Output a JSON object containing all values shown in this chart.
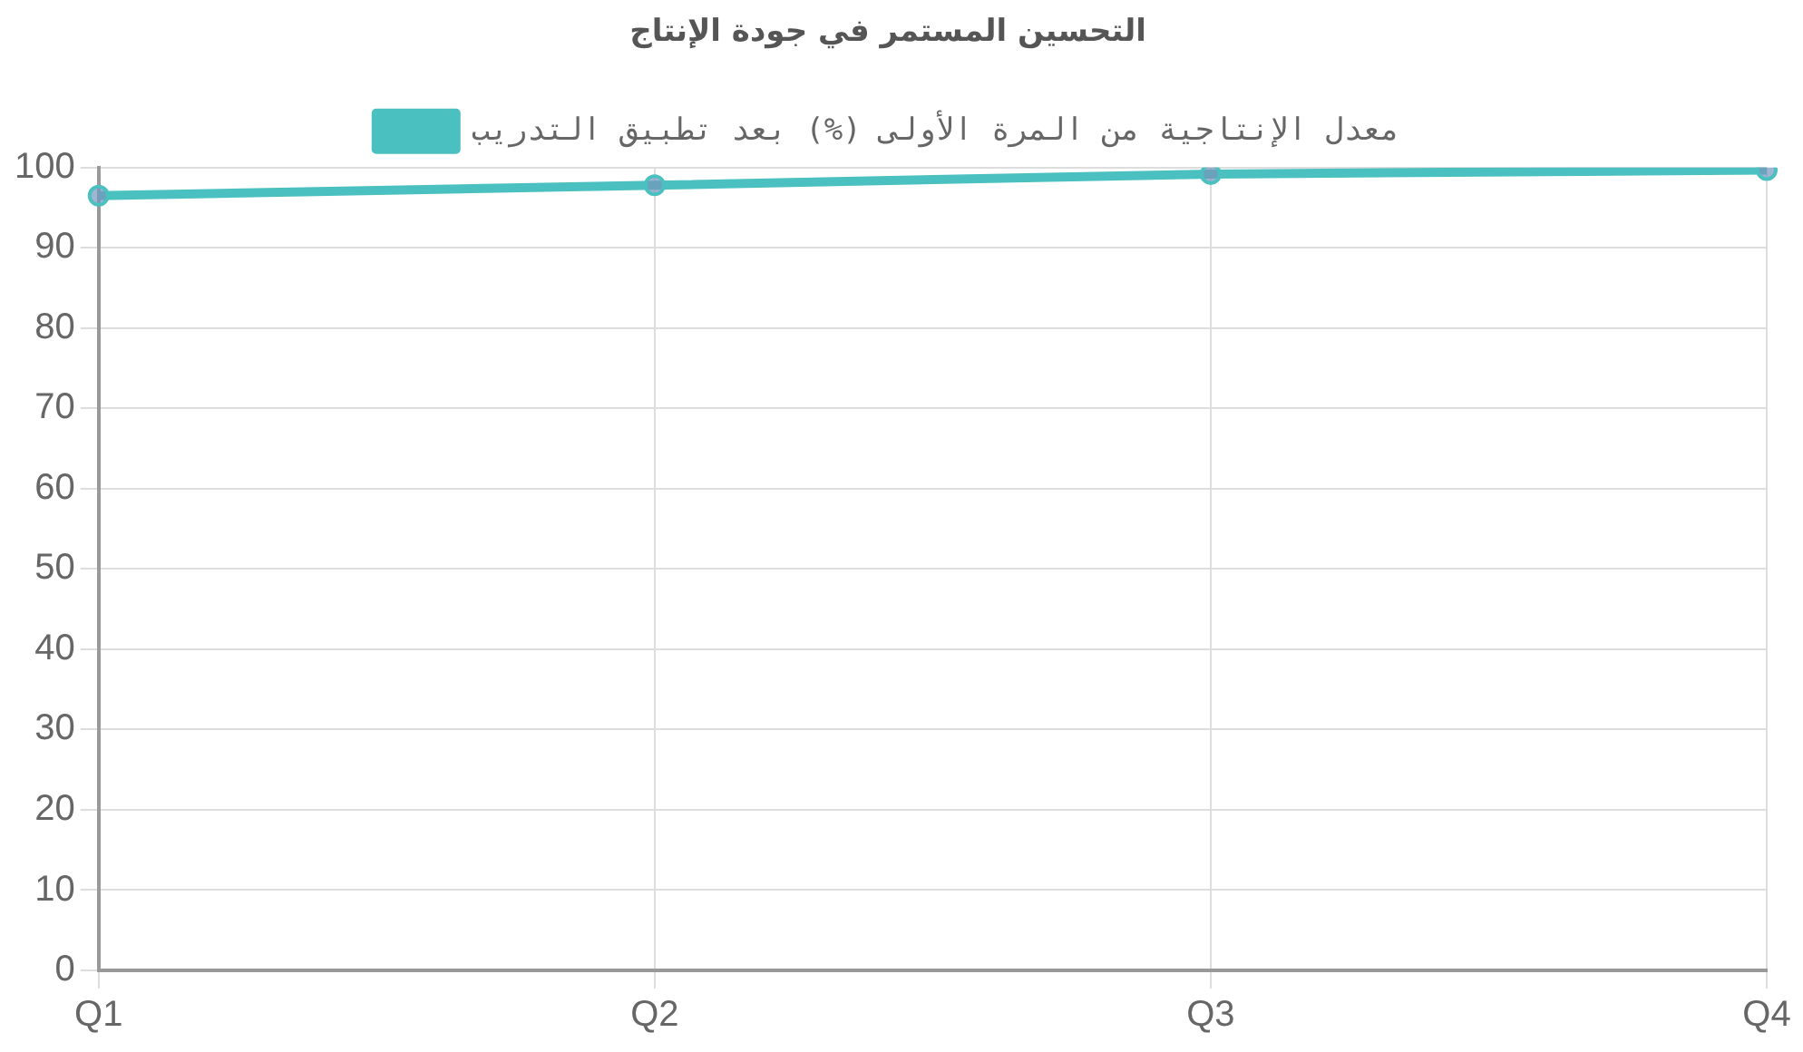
{
  "chart_data": {
    "type": "line",
    "title": "التحسين المستمر في جودة الإنتاج",
    "categories": [
      "Q1",
      "Q2",
      "Q3",
      "Q4"
    ],
    "series": [
      {
        "name": "معدل الإنتاجية من المرة الأولى (%) بعد تطبيق التدريب",
        "color": "#4bc0c0",
        "values": [
          96.5,
          97.8,
          99.2,
          99.7
        ]
      }
    ],
    "ylim": [
      0,
      100
    ],
    "yticks": [
      0,
      10,
      20,
      30,
      40,
      50,
      60,
      70,
      80,
      90,
      100
    ],
    "grid": true,
    "legend": "top",
    "marker": "circle",
    "line_style": "solid"
  }
}
